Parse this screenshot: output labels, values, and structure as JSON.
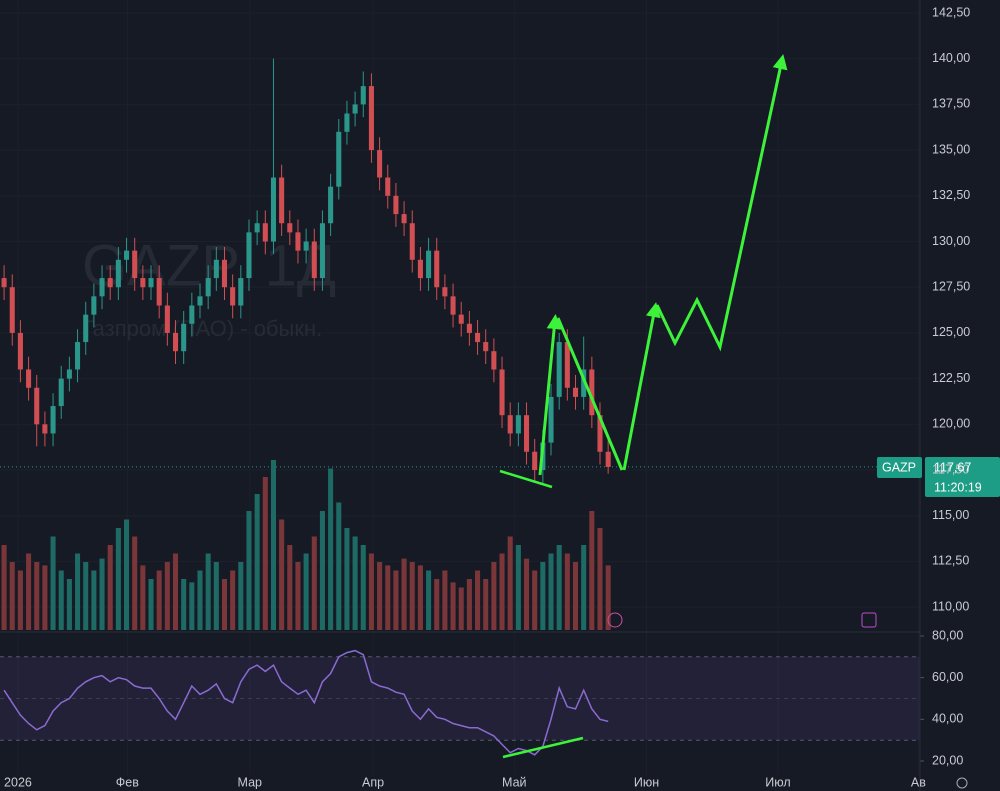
{
  "chart_data": {
    "type": "candlestick",
    "watermark_title": "GAZP, 1Д",
    "watermark_subtitle": "Газпром (ПАО) - обыкн.",
    "symbol": "GAZP",
    "last_price": {
      "value": 117.67,
      "label": "117,67"
    },
    "countdown": "11:20:19",
    "up_color": "#2b978b",
    "down_color": "#d14f52",
    "volume_up_color": "#1e6a65",
    "volume_down_color": "#7b3639",
    "open": [
      128,
      127.5,
      125,
      123,
      122,
      120,
      119.5,
      121,
      122.5,
      123,
      124.5,
      126,
      127,
      128,
      127.5,
      129,
      129.5,
      128,
      127.5,
      128,
      126.5,
      125,
      124,
      125.5,
      126.5,
      127,
      128,
      129,
      127.5,
      126.5,
      128,
      130.5,
      131,
      130,
      133.5,
      131,
      130.5,
      129.5,
      130,
      128,
      131,
      133,
      136,
      137,
      137.5,
      138.5,
      135,
      133.5,
      132.5,
      131.5,
      131,
      129,
      128,
      129.5,
      127.5,
      127,
      126,
      125.5,
      125,
      124.5,
      124,
      123,
      120.5,
      119.5,
      120.5,
      118.5,
      117.5,
      119,
      121.5,
      124.5,
      122,
      121.5,
      123,
      120.5,
      118.5
    ],
    "high": [
      128.7,
      128.2,
      125.7,
      123.7,
      122.7,
      120.7,
      121.7,
      123.2,
      123.7,
      125.2,
      126.7,
      127.7,
      128.7,
      128.7,
      129.7,
      130.2,
      130.2,
      128.7,
      128.7,
      128.7,
      127.2,
      125.7,
      126.2,
      127.2,
      127.7,
      128.7,
      129.7,
      129.7,
      128.2,
      128.7,
      131.2,
      131.7,
      131.7,
      140,
      134.2,
      131.7,
      131.2,
      130.7,
      130.7,
      131.7,
      133.7,
      136.7,
      137.7,
      138.2,
      139.3,
      139.2,
      135.7,
      134.2,
      133.2,
      132.2,
      131.7,
      129.7,
      130.2,
      130.2,
      128.2,
      127.7,
      126.7,
      126.2,
      125.7,
      125.2,
      124.7,
      123.7,
      121.2,
      121.2,
      121.2,
      119.2,
      119.7,
      122.2,
      125,
      125.2,
      122.7,
      124.8,
      123.7,
      121.2,
      119.2
    ],
    "low": [
      126.8,
      124.3,
      122.3,
      121.3,
      118.8,
      118.8,
      118.8,
      120.3,
      121.8,
      122.3,
      123.8,
      125.3,
      126.3,
      126.8,
      126.8,
      128.3,
      127.3,
      126.8,
      126.8,
      125.8,
      124.3,
      123.3,
      123.3,
      124.8,
      125.8,
      126.3,
      127.3,
      126.8,
      125.8,
      125.8,
      127.3,
      129.8,
      129.3,
      129.3,
      130.3,
      129.8,
      128.8,
      128.8,
      127.3,
      127.3,
      130.3,
      132.3,
      135.3,
      136.3,
      136.8,
      134.3,
      132.8,
      131.8,
      130.8,
      130.3,
      128.3,
      127.3,
      127.3,
      126.8,
      126.3,
      125.3,
      124.8,
      124.3,
      123.8,
      123.3,
      122.3,
      119.8,
      118.8,
      118.8,
      117.8,
      116.8,
      116.8,
      118.3,
      120.8,
      121.3,
      120.8,
      120.8,
      119.8,
      117.8,
      117.3
    ],
    "close": [
      127.5,
      125,
      123,
      122,
      120,
      119.5,
      121,
      122.5,
      123,
      124.5,
      126,
      127,
      128,
      127.5,
      129,
      129.5,
      128,
      127.5,
      128,
      126.5,
      125,
      124,
      125.5,
      126.5,
      127,
      128,
      129,
      127.5,
      126.5,
      128,
      130.5,
      131,
      130,
      133.5,
      131,
      130.5,
      129.5,
      130,
      128,
      131,
      133,
      136,
      137,
      137.5,
      138.5,
      135,
      133.5,
      132.5,
      131.5,
      131,
      129,
      128,
      129.5,
      127.5,
      127,
      126,
      125.5,
      125,
      124.5,
      124,
      123,
      120.5,
      119.5,
      120.5,
      118.5,
      117.5,
      119,
      121.5,
      124.5,
      122,
      121.5,
      123,
      120.5,
      118.5,
      117.67
    ],
    "volume": [
      50,
      40,
      35,
      45,
      40,
      38,
      55,
      35,
      30,
      45,
      40,
      35,
      42,
      50,
      60,
      65,
      55,
      38,
      30,
      35,
      40,
      45,
      30,
      28,
      35,
      45,
      40,
      30,
      35,
      40,
      70,
      80,
      90,
      100,
      65,
      50,
      40,
      45,
      55,
      70,
      95,
      75,
      60,
      55,
      50,
      45,
      40,
      38,
      35,
      42,
      40,
      38,
      35,
      30,
      35,
      28,
      25,
      30,
      35,
      30,
      40,
      45,
      55,
      50,
      42,
      35,
      40,
      45,
      50,
      45,
      40,
      50,
      70,
      60,
      38
    ],
    "xlim": [
      -0.5,
      112.2
    ],
    "xticks": [
      {
        "value": 1.7,
        "label": "2026"
      },
      {
        "value": 15.1,
        "label": "Фев"
      },
      {
        "value": 30.1,
        "label": "Мар"
      },
      {
        "value": 45.2,
        "label": "Апр"
      },
      {
        "value": 62.5,
        "label": "Май"
      },
      {
        "value": 78.7,
        "label": "Июн"
      },
      {
        "value": 94.8,
        "label": "Июл"
      },
      {
        "value": 112,
        "label": "Ав"
      }
    ],
    "ylim": [
      108.75,
      143.21
    ],
    "yticks": [
      {
        "value": 142.5,
        "label": "142,50"
      },
      {
        "value": 140,
        "label": "140,00"
      },
      {
        "value": 137.5,
        "label": "137,50"
      },
      {
        "value": 135,
        "label": "135,00"
      },
      {
        "value": 132.5,
        "label": "132,50"
      },
      {
        "value": 130,
        "label": "130,00"
      },
      {
        "value": 127.5,
        "label": "127,50"
      },
      {
        "value": 125,
        "label": "125,00"
      },
      {
        "value": 122.5,
        "label": "122,50"
      },
      {
        "value": 120,
        "label": "120,00"
      },
      {
        "value": 117.5,
        "label": "117,50"
      },
      {
        "value": 115,
        "label": "115,00"
      },
      {
        "value": 112.5,
        "label": "112,50"
      },
      {
        "value": 110,
        "label": "110,00"
      }
    ],
    "rsi": {
      "color": "#8a6bd1",
      "values": [
        54,
        48,
        42,
        38,
        35,
        37,
        44,
        48,
        50,
        55,
        58,
        60,
        61,
        58,
        60,
        59,
        56,
        55,
        55,
        50,
        44,
        40,
        48,
        56,
        52,
        54,
        57,
        50,
        48,
        58,
        64,
        66,
        63,
        66,
        58,
        55,
        52,
        54,
        48,
        58,
        62,
        70,
        72,
        73,
        71,
        58,
        56,
        55,
        53,
        52,
        44,
        40,
        45,
        41,
        40,
        38,
        37,
        36,
        36,
        34,
        32,
        28,
        24,
        26,
        25,
        23,
        27,
        40,
        55,
        46,
        45,
        54,
        45,
        40,
        39
      ],
      "ylim": [
        13.3,
        81.9
      ],
      "band": [
        30,
        70
      ],
      "yticks": [
        {
          "value": 80,
          "label": "80,00"
        },
        {
          "value": 60,
          "label": "60,00"
        },
        {
          "value": 40,
          "label": "40,00"
        },
        {
          "value": 20,
          "label": "20,00"
        }
      ]
    }
  }
}
